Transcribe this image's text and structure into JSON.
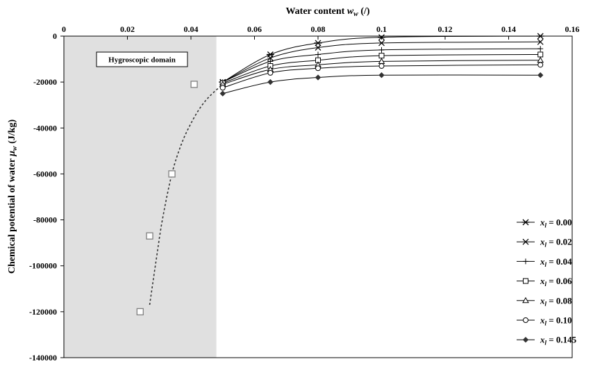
{
  "chart_data": {
    "type": "line",
    "title": "",
    "xlabel": "Water content w_w (/)",
    "ylabel": "Chemical potential of water μ_w (J/kg)",
    "x_axis_position": "top",
    "xlim": [
      0,
      0.16
    ],
    "ylim": [
      -140000,
      0
    ],
    "x_ticks": [
      "0",
      "0.02",
      "0.04",
      "0.06",
      "0.08",
      "0.1",
      "0.12",
      "0.14",
      "0.16"
    ],
    "y_ticks": [
      "0",
      "-20000",
      "-40000",
      "-60000",
      "-80000",
      "-100000",
      "-120000",
      "-140000"
    ],
    "grid": false,
    "legend_position": "bottom-right",
    "shaded_region": {
      "x": [
        0,
        0.048
      ],
      "label": "Hygroscopic domain",
      "color": "#e0e0e0"
    },
    "series": [
      {
        "name": "x_l = 0.00",
        "label_main": "x",
        "label_sub": "l",
        "label_value": " = 0.00",
        "marker": "asterisk",
        "x": [
          0.05,
          0.065,
          0.08,
          0.1,
          0.15
        ],
        "y": [
          -20000,
          -8000,
          -3000,
          -500,
          0
        ]
      },
      {
        "name": "x_l = 0.02",
        "label_main": "x",
        "label_sub": "l",
        "label_value": " = 0.02",
        "marker": "x",
        "x": [
          0.05,
          0.065,
          0.08,
          0.1,
          0.15
        ],
        "y": [
          -20000,
          -9500,
          -5000,
          -3000,
          -2500
        ]
      },
      {
        "name": "x_l = 0.04",
        "label_main": "x",
        "label_sub": "l",
        "label_value": " = 0.04",
        "marker": "plus",
        "x": [
          0.05,
          0.065,
          0.08,
          0.1,
          0.15
        ],
        "y": [
          -20000,
          -11000,
          -8000,
          -6000,
          -5500
        ]
      },
      {
        "name": "x_l = 0.06",
        "label_main": "x",
        "label_sub": "l",
        "label_value": " = 0.06",
        "marker": "square",
        "x": [
          0.05,
          0.065,
          0.08,
          0.1,
          0.15
        ],
        "y": [
          -20500,
          -13000,
          -10500,
          -8500,
          -8000
        ]
      },
      {
        "name": "x_l = 0.08",
        "label_main": "x",
        "label_sub": "l",
        "label_value": " = 0.08",
        "marker": "triangle",
        "x": [
          0.05,
          0.065,
          0.08,
          0.1,
          0.15
        ],
        "y": [
          -21000,
          -14500,
          -12500,
          -11000,
          -10500
        ]
      },
      {
        "name": "x_l = 0.10",
        "label_main": "x",
        "label_sub": "l",
        "label_value": " = 0.10",
        "marker": "circle",
        "x": [
          0.05,
          0.065,
          0.08,
          0.1,
          0.15
        ],
        "y": [
          -22500,
          -16000,
          -14000,
          -13000,
          -12500
        ]
      },
      {
        "name": "x_l = 0.145",
        "label_main": "x",
        "label_sub": "l",
        "label_value": " = 0.145",
        "marker": "diamond",
        "x": [
          0.05,
          0.065,
          0.08,
          0.1,
          0.15
        ],
        "y": [
          -25000,
          -20000,
          -18000,
          -17000,
          -17000
        ]
      }
    ],
    "hygroscopic_points": {
      "marker": "square-gray",
      "x": [
        0.024,
        0.027,
        0.034,
        0.041
      ],
      "y": [
        -120000,
        -87000,
        -60000,
        -21000
      ]
    },
    "hygroscopic_fit": {
      "style": "dashed",
      "x": [
        0.027,
        0.029,
        0.031,
        0.034,
        0.037,
        0.04,
        0.043,
        0.046,
        0.05
      ],
      "y": [
        -117000,
        -98000,
        -80000,
        -60000,
        -47000,
        -38000,
        -31000,
        -26000,
        -21000
      ]
    }
  }
}
